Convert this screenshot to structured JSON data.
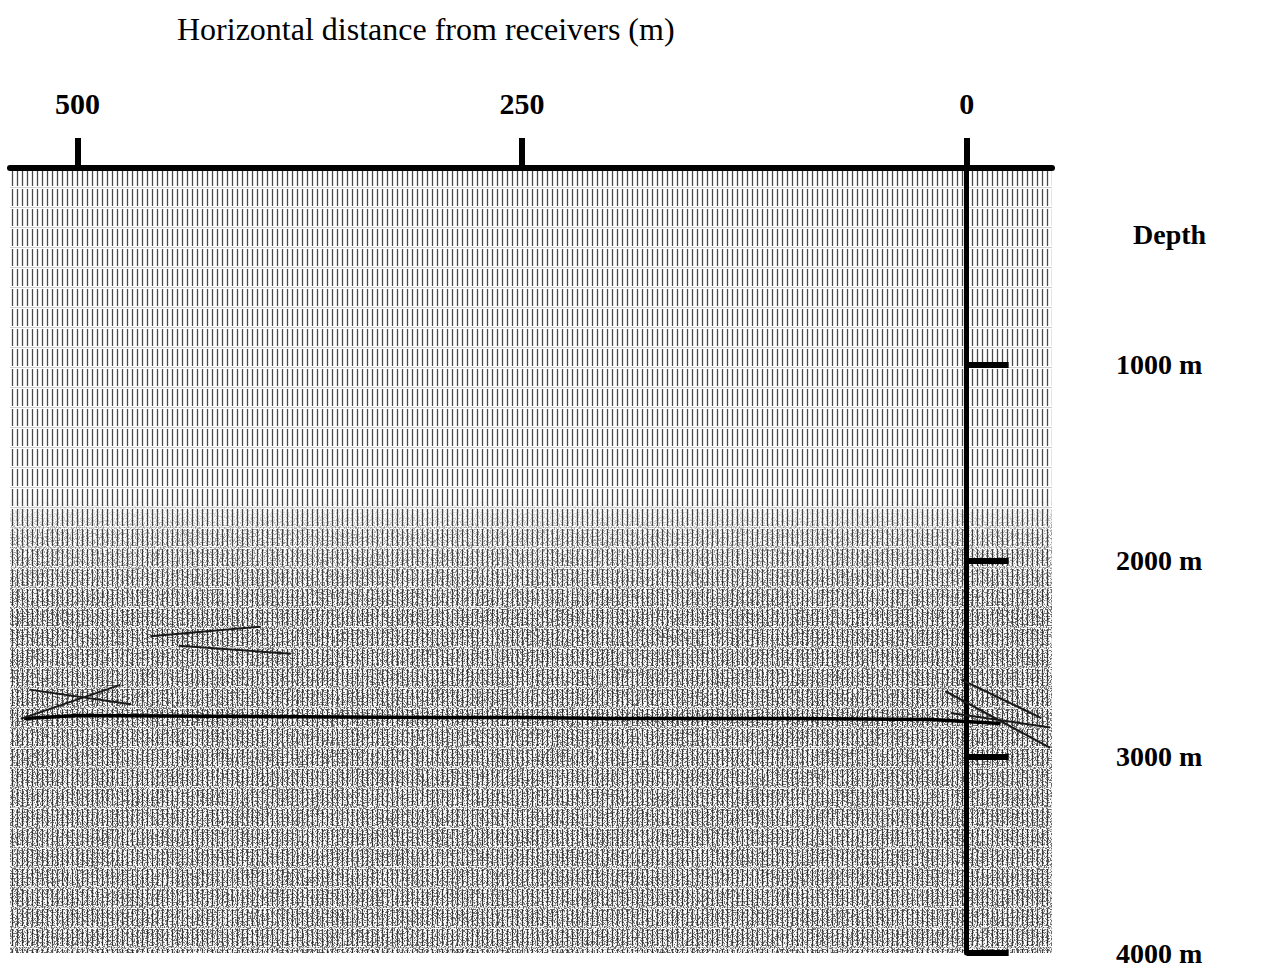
{
  "chart_data": {
    "type": "line",
    "title": "Horizontal distance from receivers (m)",
    "y_label": "Depth",
    "xlim": [
      538,
      -48
    ],
    "xticks": [
      500,
      250,
      0
    ],
    "ylim": [
      0,
      4000
    ],
    "yticks": [
      {
        "value": 1000,
        "label": "1000 m"
      },
      {
        "value": 2000,
        "label": "2000 m"
      },
      {
        "value": 3000,
        "label": "3000 m"
      },
      {
        "value": 4000,
        "label": "4000 m"
      }
    ],
    "grid": false,
    "series": [
      {
        "x": [
          530,
          500,
          400,
          300,
          250,
          200,
          100,
          20,
          -19
        ],
        "values": [
          2805,
          2790,
          2795,
          2800,
          2800,
          2805,
          2805,
          2810,
          2830
        ],
        "color": "#000000",
        "line_style": "solid"
      },
      {
        "x": [
          532,
          476,
          null,
          527,
          470,
          null,
          459,
          397,
          null,
          443,
          380,
          null,
          12,
          -47,
          null,
          9,
          -47,
          null,
          3,
          -42
        ],
        "values": [
          2807,
          2634,
          null,
          2658,
          2732,
          null,
          2386,
          2337,
          null,
          2435,
          2475,
          null,
          2666,
          2955,
          null,
          2777,
          2851,
          null,
          2607,
          2803
        ],
        "color": "#1a1a1a",
        "line_style": "solid"
      }
    ]
  }
}
